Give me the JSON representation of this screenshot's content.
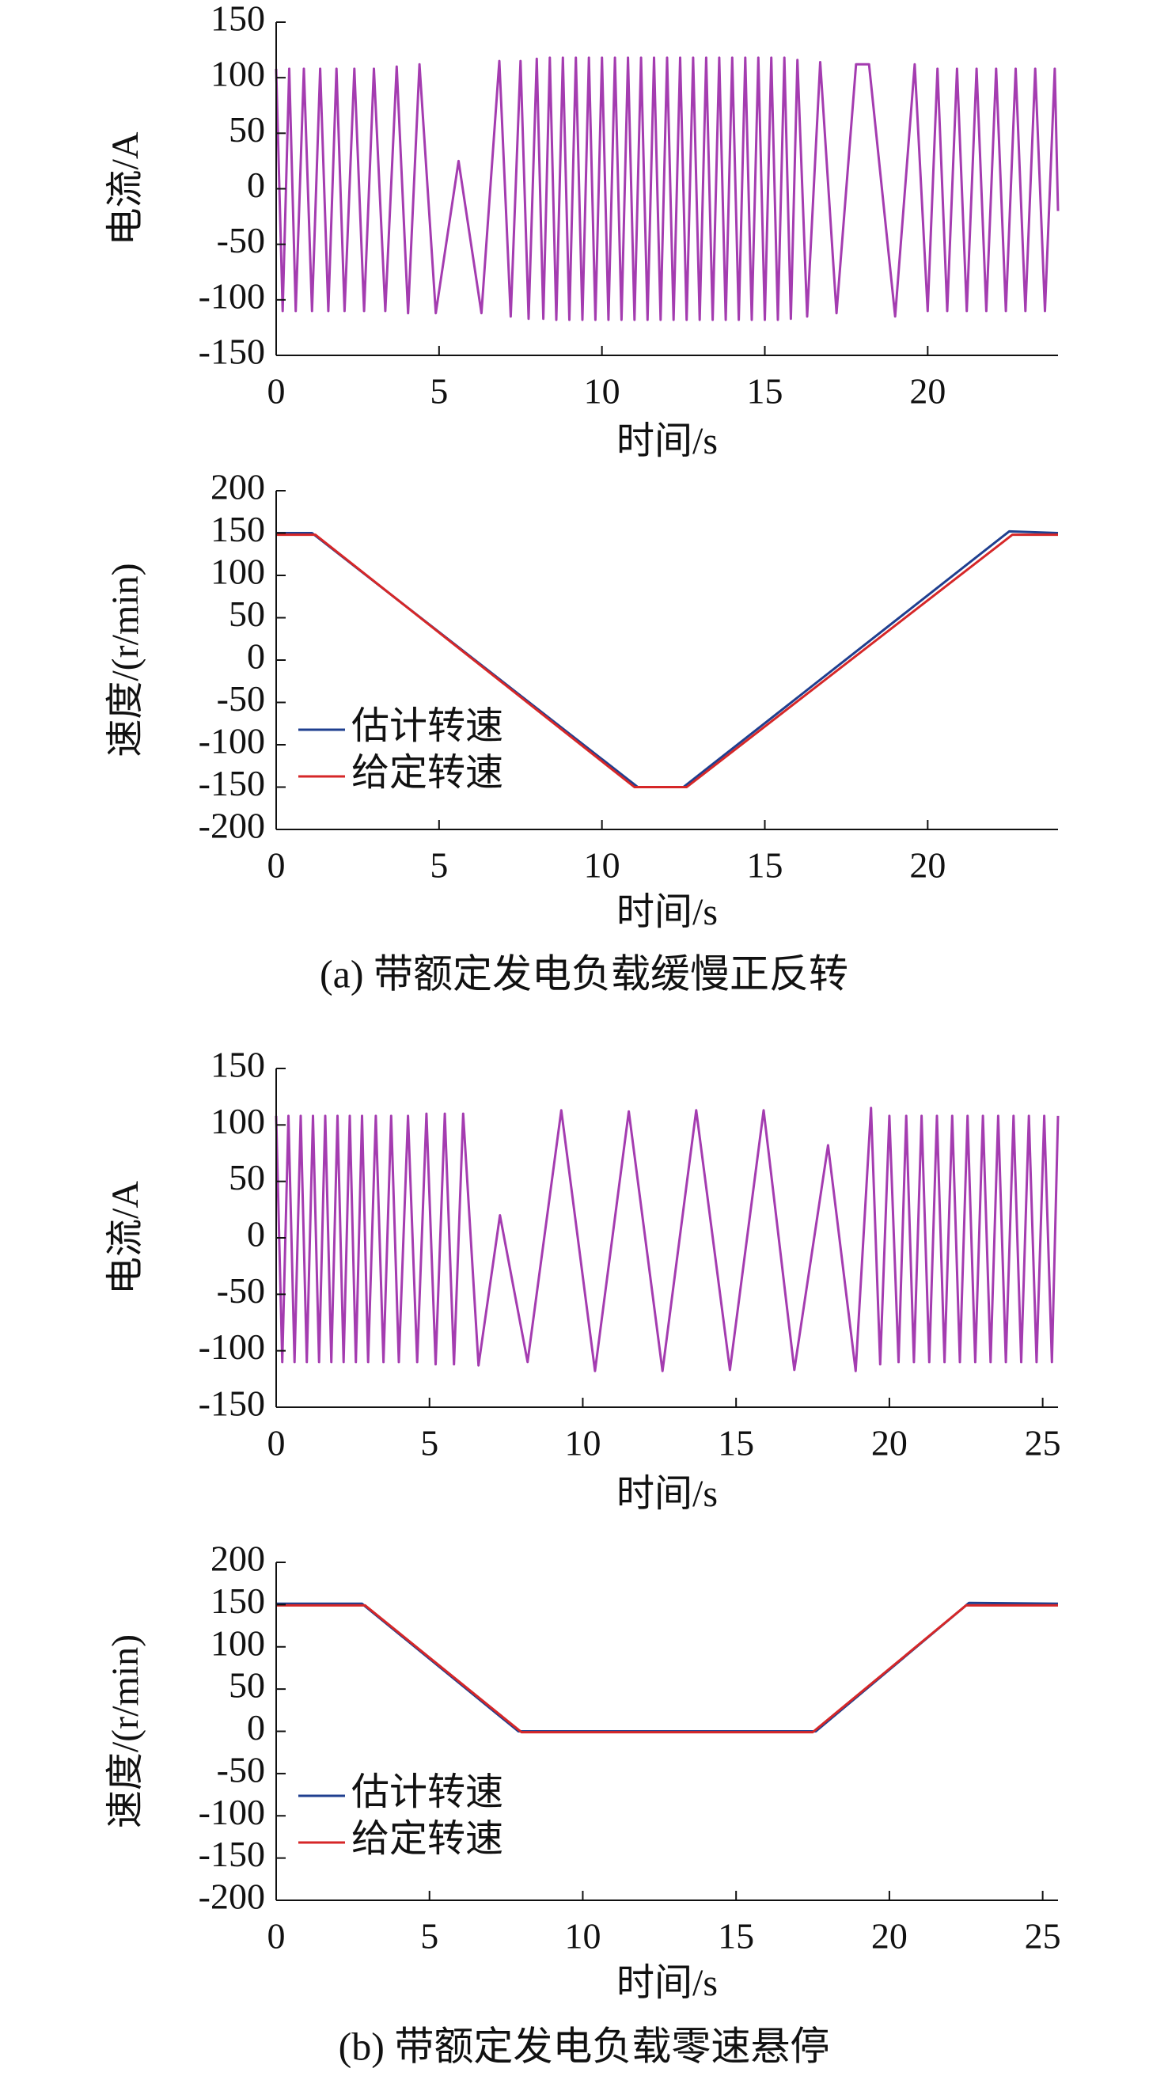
{
  "chart_data": [
    {
      "type": "line",
      "xlabel": "时间/s",
      "ylabel": "电流/A",
      "xlim": [
        0,
        24
      ],
      "ylim": [
        -150,
        150
      ],
      "xticks": [
        0,
        5,
        10,
        15,
        20
      ],
      "yticks": [
        -150,
        -100,
        -50,
        0,
        50,
        100,
        150
      ],
      "series": [
        {
          "color": "#a43cb0",
          "x": [
            0,
            0.2,
            0.4,
            0.6,
            0.85,
            1.1,
            1.35,
            1.6,
            1.85,
            2.1,
            2.4,
            2.7,
            3.0,
            3.35,
            3.7,
            4.05,
            4.4,
            4.9,
            5.6,
            6.3,
            6.85,
            7.2,
            7.5,
            7.75,
            8.0,
            8.2,
            8.4,
            8.6,
            8.8,
            9.0,
            9.2,
            9.4,
            9.6,
            9.8,
            10.0,
            10.2,
            10.4,
            10.6,
            10.8,
            11.0,
            11.2,
            11.4,
            11.6,
            11.8,
            12.0,
            12.2,
            12.4,
            12.6,
            12.8,
            13.0,
            13.2,
            13.4,
            13.6,
            13.8,
            14.0,
            14.2,
            14.4,
            14.6,
            14.8,
            15.0,
            15.2,
            15.4,
            15.6,
            15.8,
            16.0,
            16.3,
            16.7,
            17.2,
            17.8,
            18.2,
            19.0,
            19.6,
            20.0,
            20.3,
            20.6,
            20.9,
            21.2,
            21.5,
            21.8,
            22.1,
            22.4,
            22.7,
            23.0,
            23.3,
            23.6,
            23.9,
            24.0
          ],
          "values": [
            108,
            -110,
            108,
            -110,
            108,
            -110,
            108,
            -110,
            108,
            -110,
            108,
            -110,
            108,
            -110,
            110,
            -112,
            112,
            -112,
            25,
            -112,
            115,
            -115,
            115,
            -117,
            117,
            -117,
            118,
            -118,
            118,
            -118,
            118,
            -118,
            118,
            -118,
            118,
            -118,
            118,
            -118,
            118,
            -118,
            118,
            -118,
            118,
            -118,
            118,
            -118,
            118,
            -118,
            118,
            -118,
            118,
            -118,
            118,
            -118,
            118,
            -118,
            118,
            -118,
            118,
            -118,
            118,
            -118,
            118,
            -117,
            116,
            -115,
            114,
            -112,
            112,
            112,
            -115,
            112,
            -110,
            108,
            -110,
            108,
            -110,
            108,
            -110,
            108,
            -110,
            108,
            -110,
            108,
            -110,
            108,
            -20
          ]
        }
      ]
    },
    {
      "type": "line",
      "xlabel": "时间/s",
      "ylabel": "速度/(r/min)",
      "xlim": [
        0,
        24
      ],
      "ylim": [
        -200,
        200
      ],
      "xticks": [
        0,
        5,
        10,
        15,
        20
      ],
      "yticks": [
        -200,
        -150,
        -100,
        -50,
        0,
        50,
        100,
        150,
        200
      ],
      "legend": "left",
      "series": [
        {
          "name": "估计转速",
          "color": "#1f3f8f",
          "x": [
            0,
            1.1,
            11.1,
            12.5,
            22.5,
            24
          ],
          "values": [
            150,
            150,
            -150,
            -150,
            152,
            150
          ]
        },
        {
          "name": "给定转速",
          "color": "#d62728",
          "x": [
            0,
            1.2,
            11.0,
            12.6,
            22.6,
            24
          ],
          "values": [
            148,
            148,
            -150,
            -150,
            148,
            148
          ]
        }
      ]
    },
    {
      "type": "line",
      "xlabel": "时间/s",
      "ylabel": "电流/A",
      "xlim": [
        0,
        25.5
      ],
      "ylim": [
        -150,
        150
      ],
      "xticks": [
        0,
        5,
        10,
        15,
        20,
        25
      ],
      "yticks": [
        -150,
        -100,
        -50,
        0,
        50,
        100,
        150
      ],
      "series": [
        {
          "color": "#a43cb0",
          "x": [
            0,
            0.2,
            0.4,
            0.6,
            0.8,
            1.0,
            1.2,
            1.4,
            1.6,
            1.8,
            2.0,
            2.2,
            2.4,
            2.6,
            2.8,
            3.0,
            3.25,
            3.5,
            3.75,
            4.0,
            4.3,
            4.6,
            4.9,
            5.2,
            5.5,
            5.8,
            6.1,
            6.6,
            7.3,
            8.2,
            9.3,
            10.4,
            11.5,
            12.6,
            13.7,
            14.8,
            15.9,
            16.9,
            18.0,
            18.9,
            19.4,
            19.7,
            20.0,
            20.3,
            20.55,
            20.8,
            21.05,
            21.3,
            21.55,
            21.8,
            22.05,
            22.3,
            22.55,
            22.8,
            23.05,
            23.3,
            23.55,
            23.8,
            24.05,
            24.3,
            24.55,
            24.8,
            25.05,
            25.3,
            25.5
          ],
          "values": [
            108,
            -110,
            108,
            -110,
            108,
            -110,
            108,
            -110,
            108,
            -110,
            108,
            -110,
            108,
            -110,
            108,
            -110,
            108,
            -110,
            108,
            -110,
            108,
            -110,
            110,
            -112,
            110,
            -112,
            110,
            -113,
            20,
            -110,
            113,
            -118,
            112,
            -118,
            113,
            -117,
            113,
            -117,
            82,
            -118,
            115,
            -112,
            108,
            -110,
            108,
            -110,
            108,
            -110,
            108,
            -110,
            108,
            -110,
            108,
            -110,
            108,
            -110,
            108,
            -110,
            108,
            -110,
            108,
            -110,
            108,
            -110,
            108
          ]
        }
      ]
    },
    {
      "type": "line",
      "xlabel": "时间/s",
      "ylabel": "速度/(r/min)",
      "xlim": [
        0,
        25.5
      ],
      "ylim": [
        -200,
        200
      ],
      "xticks": [
        0,
        5,
        10,
        15,
        20,
        25
      ],
      "yticks": [
        -200,
        -150,
        -100,
        -50,
        0,
        50,
        100,
        150,
        200
      ],
      "legend": "left",
      "series": [
        {
          "name": "估计转速",
          "color": "#1f3f8f",
          "x": [
            0,
            2.8,
            7.9,
            17.6,
            22.6,
            25.5
          ],
          "values": [
            151,
            151,
            0,
            0,
            152,
            151
          ]
        },
        {
          "name": "给定转速",
          "color": "#d62728",
          "x": [
            0,
            2.9,
            8.0,
            17.5,
            22.5,
            25.5
          ],
          "values": [
            149,
            149,
            -1,
            -1,
            149,
            149
          ]
        }
      ]
    }
  ],
  "captions": [
    "(a) 带额定发电负载缓慢正反转",
    "(b) 带额定发电负载零速悬停"
  ]
}
